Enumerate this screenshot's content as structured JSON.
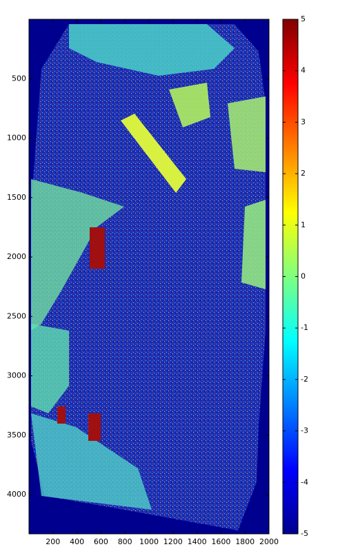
{
  "chart_data": {
    "type": "heatmap",
    "xlim": [
      0,
      2000
    ],
    "xticks": [
      200,
      400,
      600,
      800,
      1000,
      1200,
      1400,
      1600,
      1800,
      2000
    ],
    "ylim": [
      0,
      4330
    ],
    "yticks": [
      500,
      1000,
      1500,
      2000,
      2500,
      3000,
      3500,
      4000
    ],
    "colorbar": {
      "colormap": "jet",
      "clim": [
        -5,
        5
      ],
      "ticks": [
        5,
        4,
        3,
        2,
        1,
        0,
        -1,
        -2,
        -3,
        -4,
        -5
      ]
    }
  }
}
